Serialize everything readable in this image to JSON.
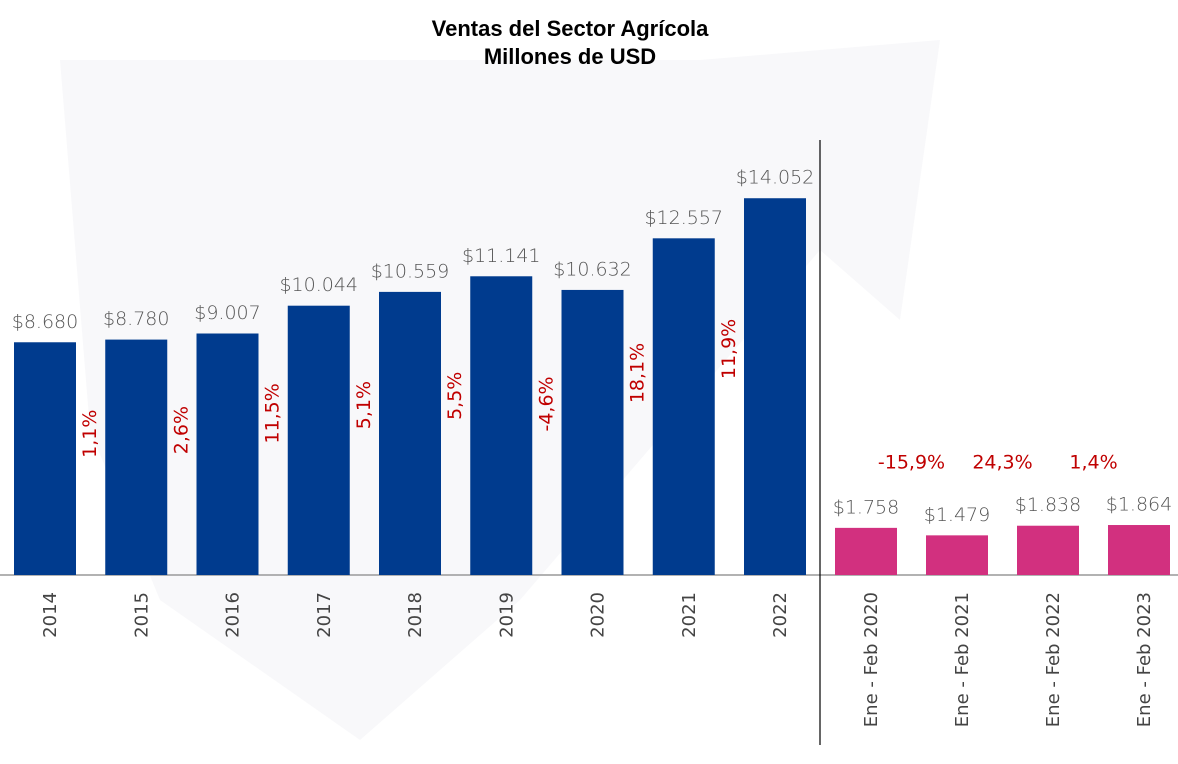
{
  "chart_data": {
    "type": "bar",
    "title": "Ventas del Sector Agrícola",
    "subtitle": "Millones de USD",
    "categories": [
      "2014",
      "2015",
      "2016",
      "2017",
      "2018",
      "2019",
      "2020",
      "2021",
      "2022",
      "Ene - Feb 2020",
      "Ene - Feb 2021",
      "Ene - Feb 2022",
      "Ene - Feb 2023"
    ],
    "values": [
      8680,
      8780,
      9007,
      10044,
      10559,
      11141,
      10632,
      12557,
      14052,
      1758,
      1479,
      1838,
      1864
    ],
    "value_labels": [
      "$8.680",
      "$8.780",
      "$9.007",
      "$10.044",
      "$10.559",
      "$11.141",
      "$10.632",
      "$12.557",
      "$14.052",
      "$1.758",
      "$1.479",
      "$1.838",
      "$1.864"
    ],
    "colors": [
      "#003b8e",
      "#003b8e",
      "#003b8e",
      "#003b8e",
      "#003b8e",
      "#003b8e",
      "#003b8e",
      "#003b8e",
      "#003b8e",
      "#d2307f",
      "#d2307f",
      "#d2307f",
      "#d2307f"
    ],
    "growth": [
      1.1,
      2.6,
      11.5,
      5.1,
      5.5,
      -4.6,
      18.1,
      11.9,
      null,
      -15.9,
      24.3,
      1.4
    ],
    "growth_labels": [
      "1,1%",
      "2,6%",
      "11,5%",
      "5,1%",
      "5,5%",
      "-4,6%",
      "18,1%",
      "11,9%",
      null,
      "-15,9%",
      "24,3%",
      "1,4%"
    ],
    "ylim": [
      0,
      16000
    ]
  }
}
